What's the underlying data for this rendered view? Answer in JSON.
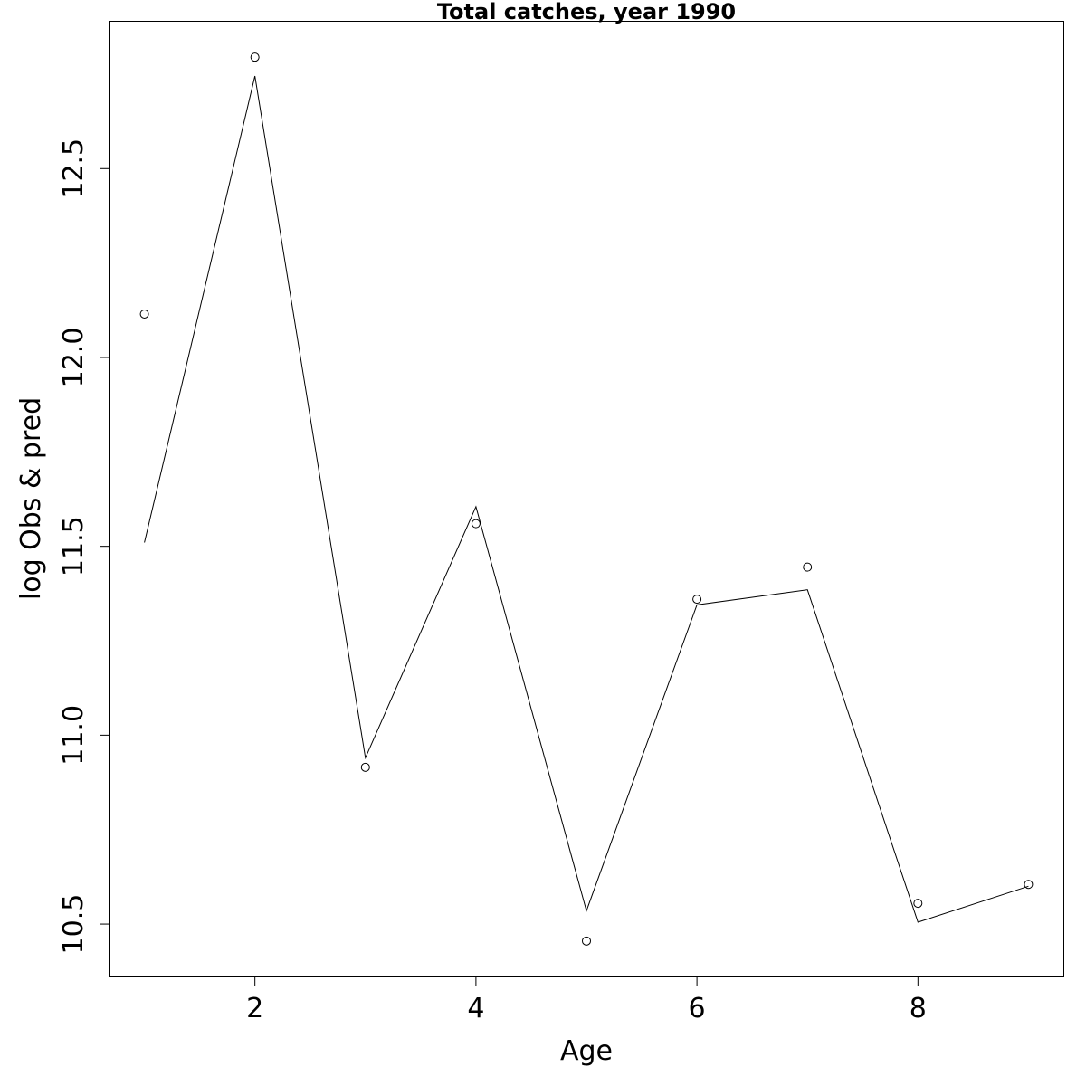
{
  "chart_data": {
    "type": "line",
    "title": "Total catches, year 1990",
    "xlabel": "Age",
    "ylabel": "log Obs & pred",
    "xlim": [
      0.68,
      9.32
    ],
    "ylim": [
      10.36,
      12.89
    ],
    "x_ticks": [
      2,
      4,
      6,
      8
    ],
    "x_tick_labels": [
      "2",
      "4",
      "6",
      "8"
    ],
    "y_ticks": [
      10.5,
      11.0,
      11.5,
      12.0,
      12.5
    ],
    "y_tick_labels": [
      "10.5",
      "11.0",
      "11.5",
      "12.0",
      "12.5"
    ],
    "grid": false,
    "legend": "none",
    "x": [
      1,
      2,
      3,
      4,
      5,
      6,
      7,
      8,
      9
    ],
    "series": [
      {
        "style": "points",
        "values": [
          12.115,
          12.795,
          10.915,
          11.56,
          10.455,
          11.36,
          11.445,
          10.555,
          10.605
        ]
      },
      {
        "style": "line",
        "values": [
          11.51,
          12.745,
          10.94,
          11.605,
          10.535,
          11.345,
          11.385,
          10.505,
          10.6
        ]
      }
    ]
  }
}
